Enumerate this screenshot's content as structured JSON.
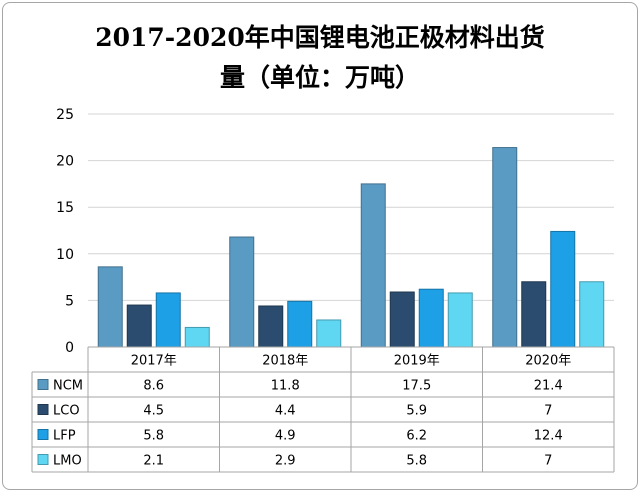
{
  "title_line1": "2017-2020年中国锂电池正极材料出货",
  "title_line2": "量（单位：万吨）",
  "chart_data": {
    "type": "bar",
    "title": "2017-2020年中国锂电池正极材料出货量（单位：万吨）",
    "categories": [
      "2017年",
      "2018年",
      "2019年",
      "2020年"
    ],
    "series": [
      {
        "name": "NCM",
        "values": [
          8.6,
          11.8,
          17.5,
          21.4
        ],
        "color": "#5a9bc4"
      },
      {
        "name": "LCO",
        "values": [
          4.5,
          4.4,
          5.9,
          7
        ],
        "color": "#2b4c6e"
      },
      {
        "name": "LFP",
        "values": [
          5.8,
          4.9,
          6.2,
          12.4
        ],
        "color": "#1ea0e6"
      },
      {
        "name": "LMO",
        "values": [
          2.1,
          2.9,
          5.8,
          7
        ],
        "color": "#5fd6f2"
      }
    ],
    "table_values": [
      [
        "8.6",
        "11.8",
        "17.5",
        "21.4"
      ],
      [
        "4.5",
        "4.4",
        "5.9",
        "7"
      ],
      [
        "5.8",
        "4.9",
        "6.2",
        "12.4"
      ],
      [
        "2.1",
        "2.9",
        "5.8",
        "7"
      ]
    ],
    "ylim": [
      0,
      25
    ],
    "yticks": [
      0,
      5,
      10,
      15,
      20,
      25
    ],
    "grid": true,
    "legend": "data-table-below"
  }
}
